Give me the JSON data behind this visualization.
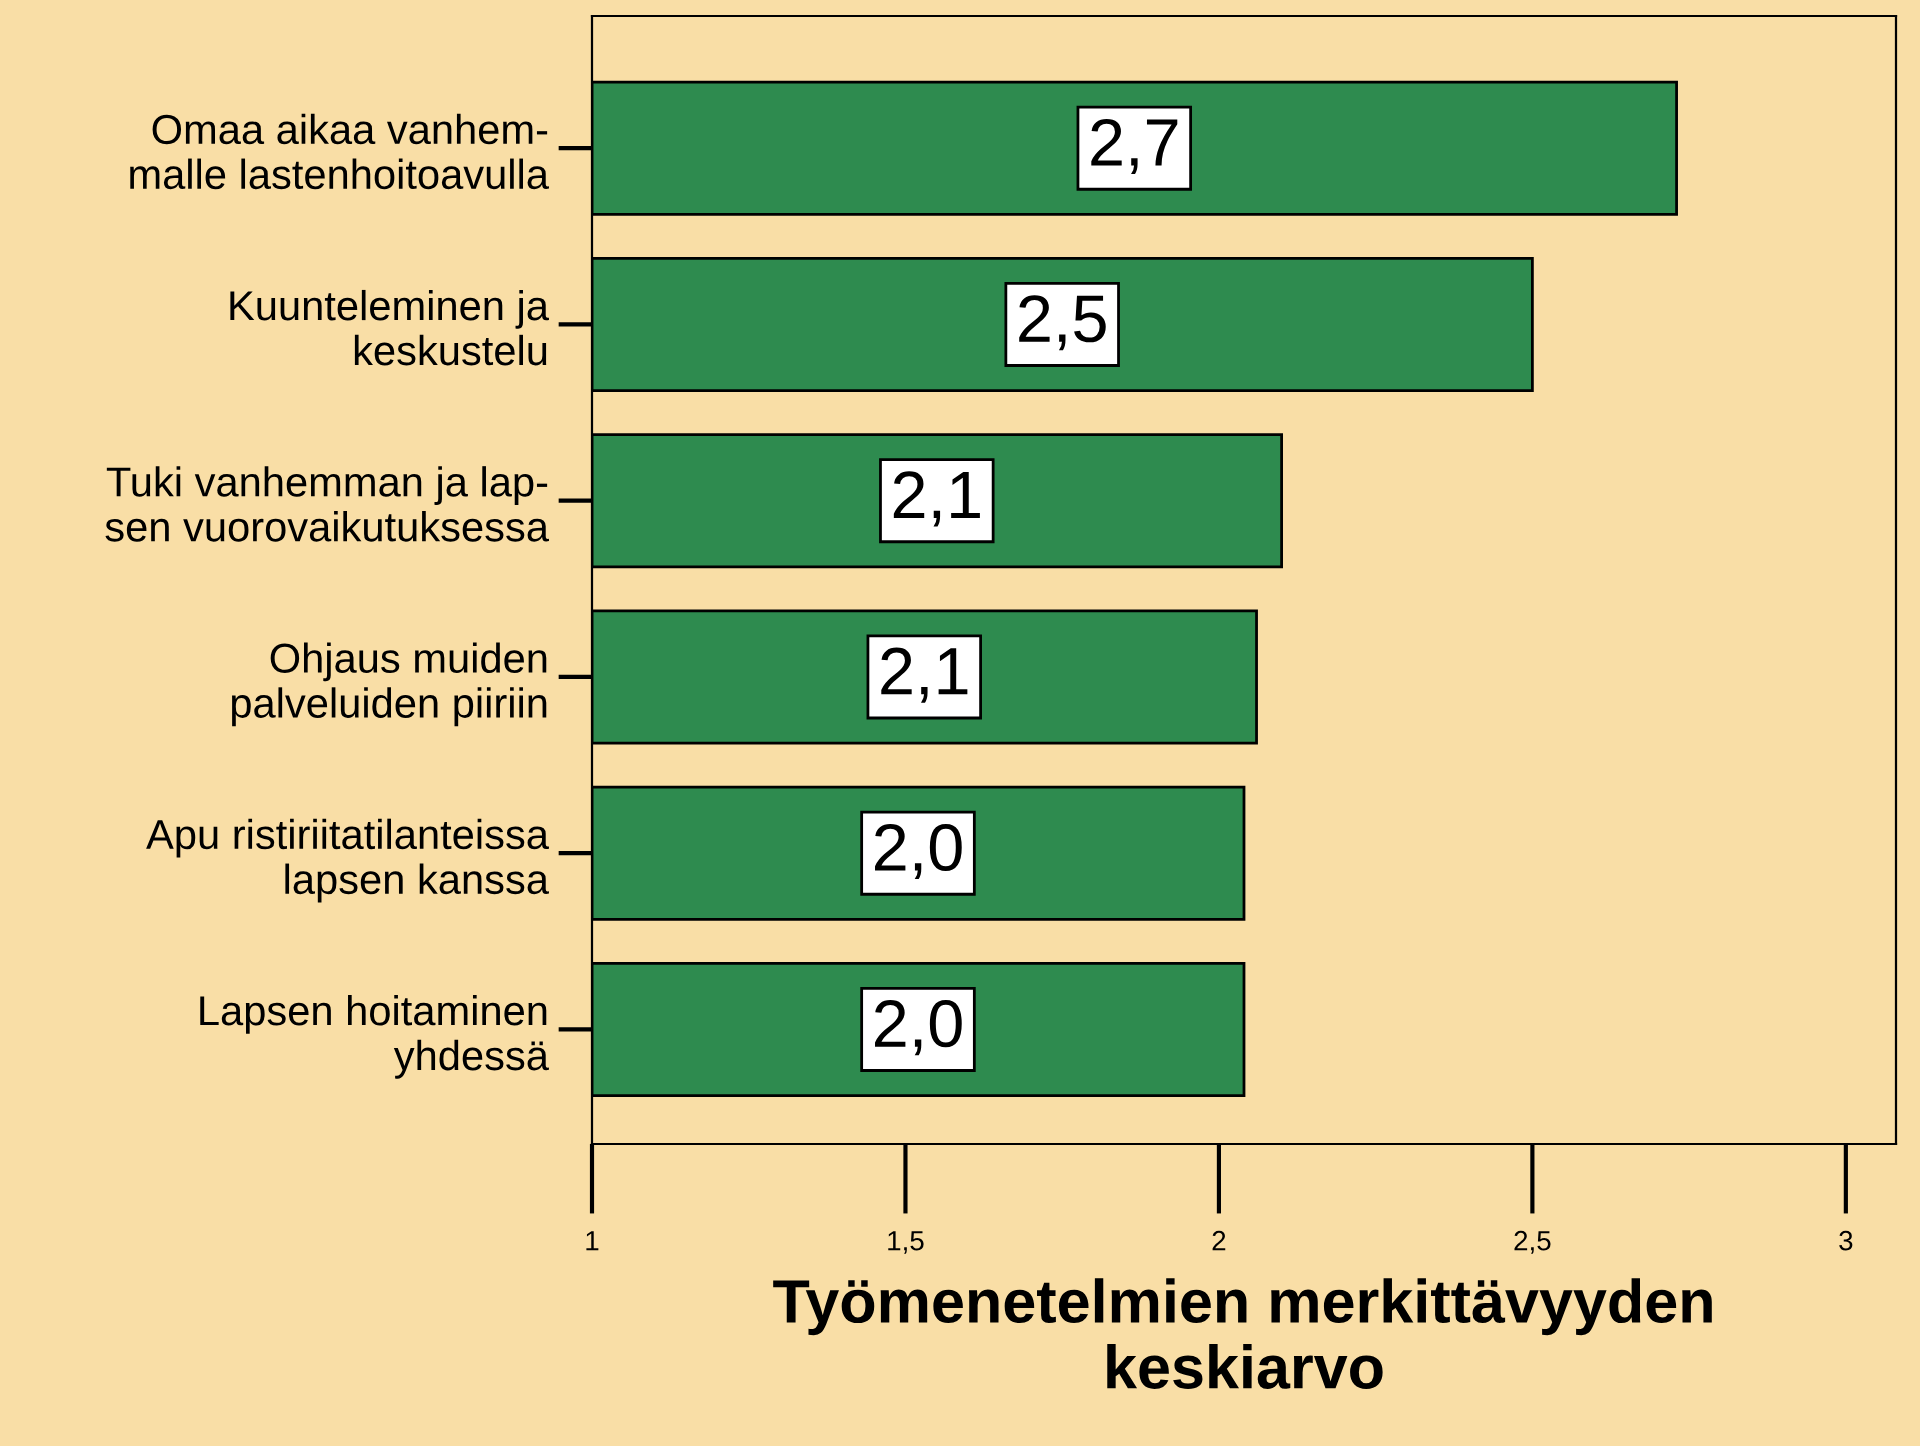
{
  "chart_data": {
    "type": "bar",
    "orientation": "horizontal",
    "categories": [
      "Omaa aikaa vanhem-\nmalle lastenhoitoavulla",
      "Kuunteleminen ja\nkeskustelu",
      "Tuki vanhemman ja lap-\nsen vuorovaikutuksessa",
      "Ohjaus muiden\npalveluiden piiriin",
      "Apu ristiriitatilanteissa\nlapsen kanssa",
      "Lapsen hoitaminen\nyhdessä"
    ],
    "values": [
      2.73,
      2.5,
      2.1,
      2.06,
      2.04,
      2.04
    ],
    "value_labels": [
      "2,7",
      "2,5",
      "2,1",
      "2,1",
      "2,0",
      "2,0"
    ],
    "color": "#2e8b4f",
    "xlim": [
      1,
      3.08
    ],
    "xticks": [
      1,
      {
        "value": 1.5,
        "label": "1,5"
      },
      2,
      {
        "value": 2.5,
        "label": "2,5"
      },
      3
    ],
    "xlabel": "Työmenetelmien merkittävyyden\nkeskiarvo",
    "grid": false,
    "legend": false
  }
}
